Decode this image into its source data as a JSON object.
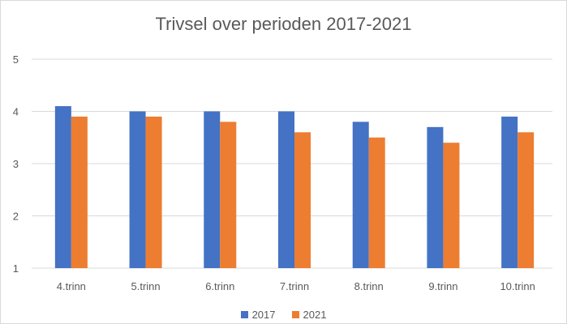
{
  "chart_data": {
    "type": "bar",
    "title": "Trivsel over perioden 2017-2021",
    "xlabel": "",
    "ylabel": "",
    "categories": [
      "4.trinn",
      "5.trinn",
      "6.trinn",
      "7.trinn",
      "8.trinn",
      "9.trinn",
      "10.trinn"
    ],
    "series": [
      {
        "name": "2017",
        "color": "#4472C4",
        "values": [
          4.1,
          4.0,
          4.0,
          4.0,
          3.8,
          3.7,
          3.9
        ]
      },
      {
        "name": "2021",
        "color": "#ED7D31",
        "values": [
          3.9,
          3.9,
          3.8,
          3.6,
          3.5,
          3.4,
          3.6
        ]
      }
    ],
    "ylim": [
      1,
      5
    ],
    "yticks": [
      "1",
      "2",
      "3",
      "4",
      "5"
    ],
    "grid": true,
    "legend_position": "bottom"
  }
}
